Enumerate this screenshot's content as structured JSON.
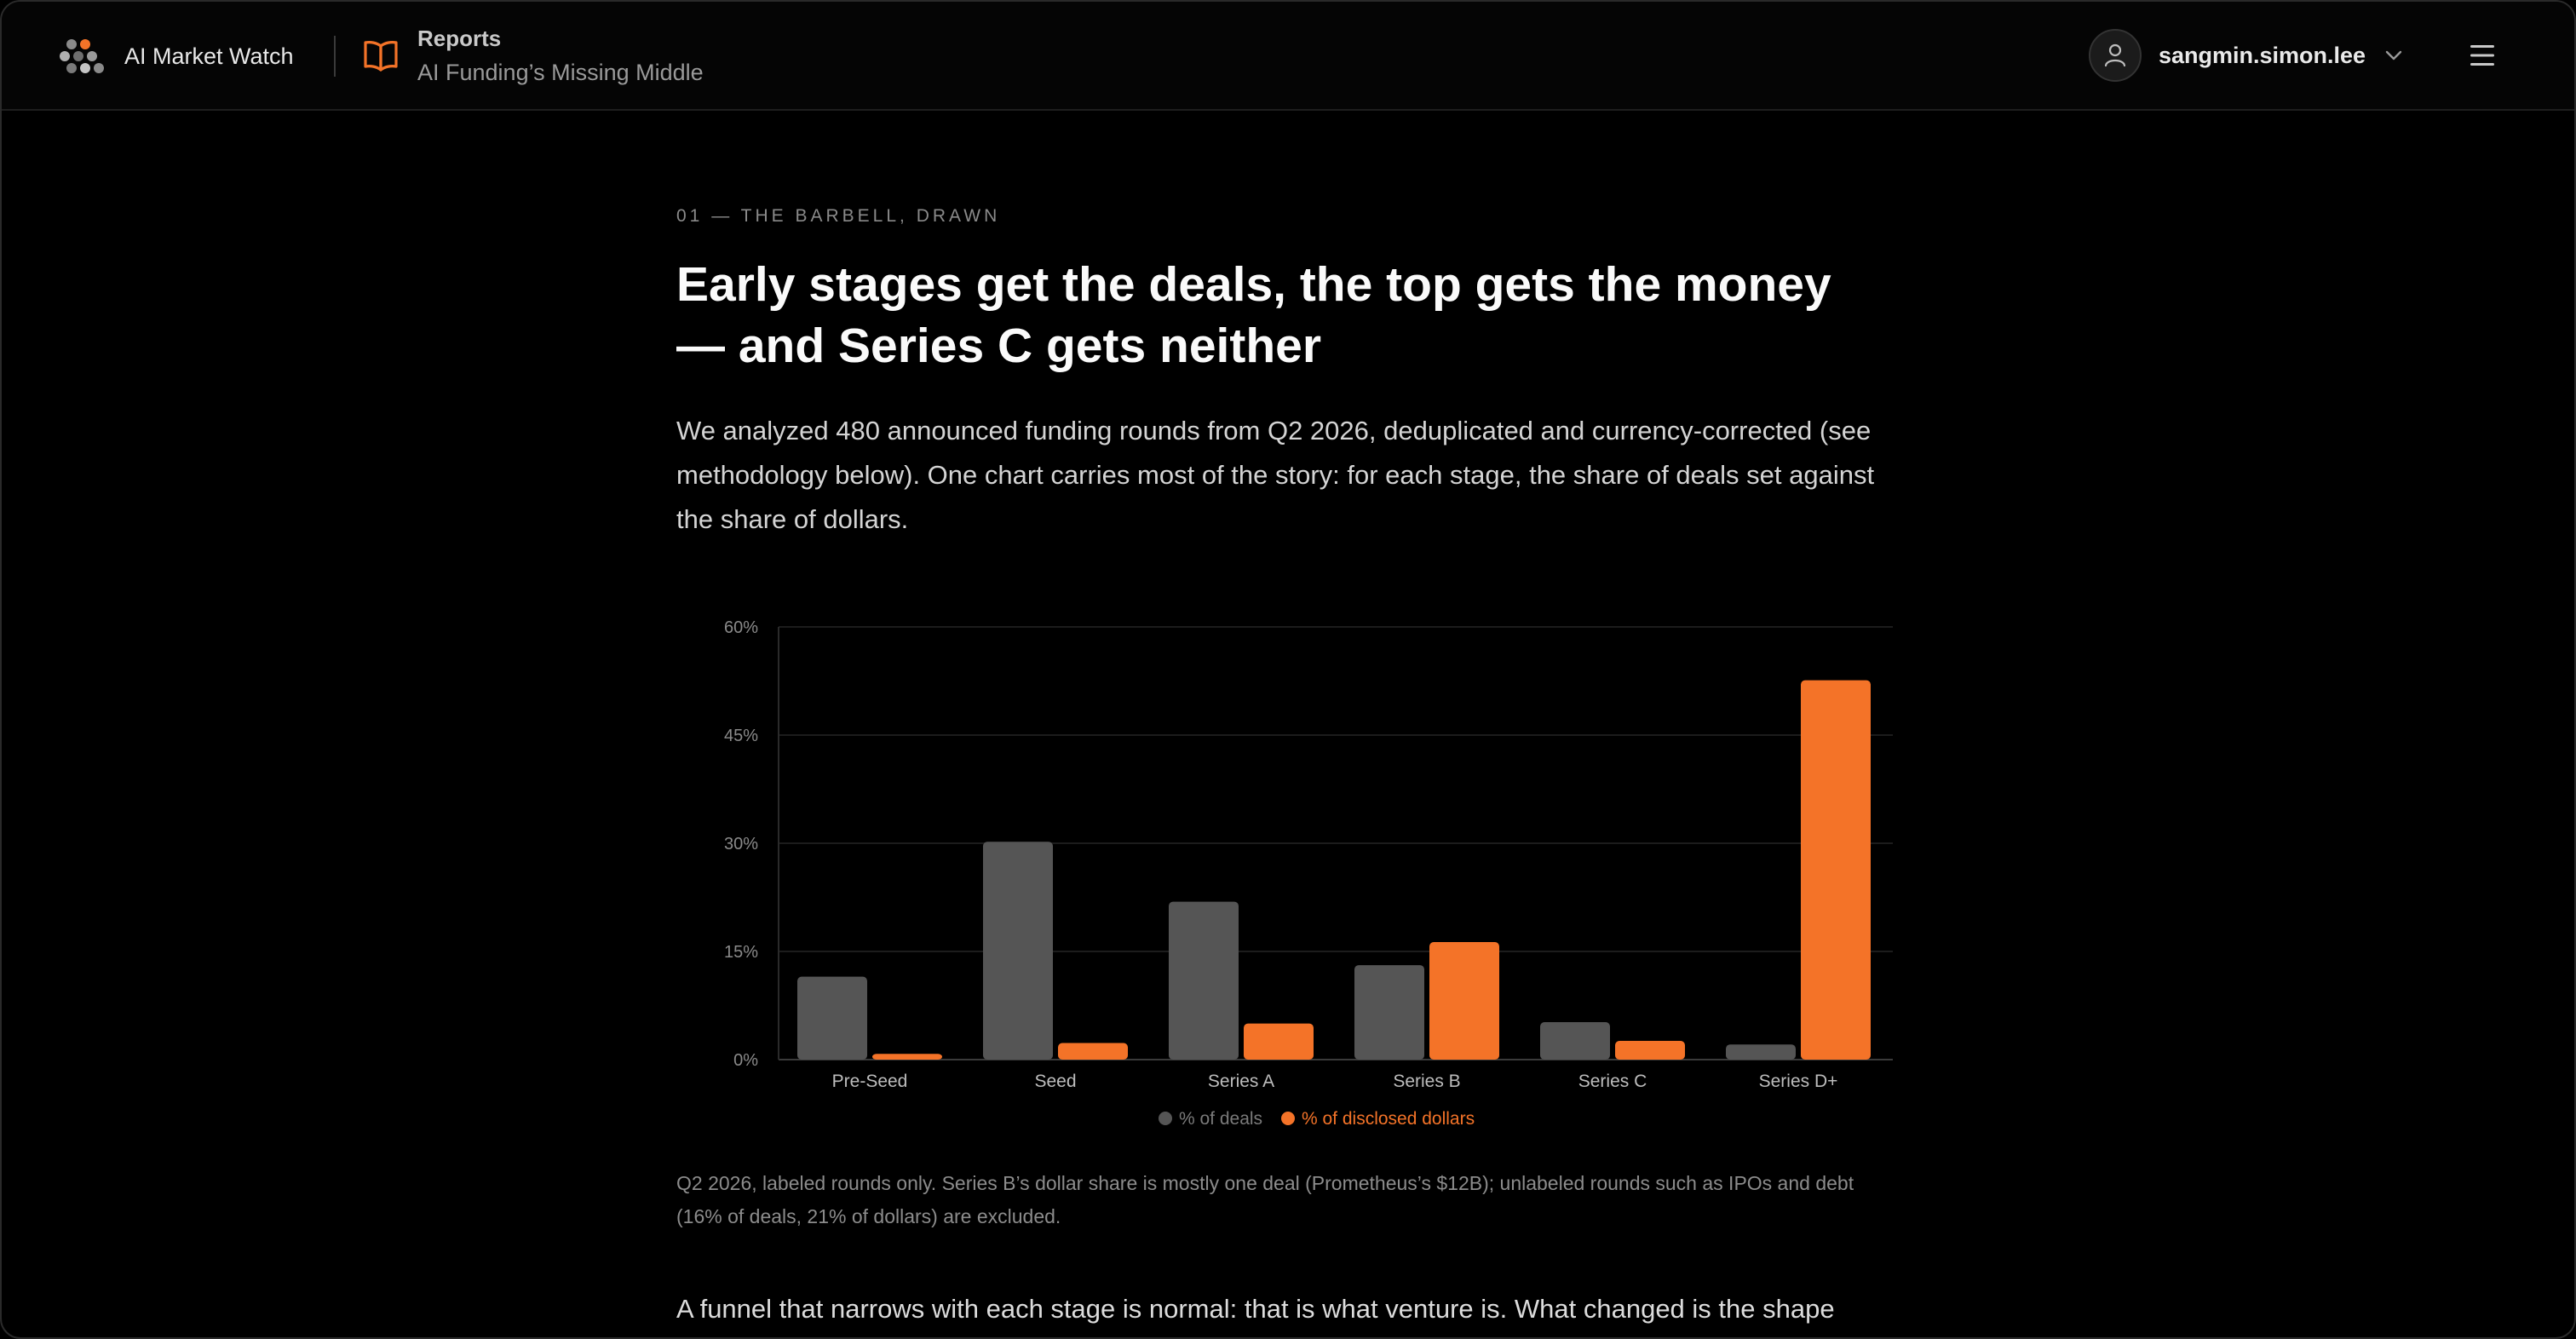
{
  "header": {
    "brand": "AI Market Watch",
    "section": "Reports",
    "page_title": "AI Funding’s Missing Middle",
    "username": "sangmin.simon.lee",
    "icons": {
      "logo": "hex-cluster-logo",
      "reports": "open-book-icon",
      "user": "user-icon",
      "dropdown": "chevron-down-icon",
      "menu": "hamburger-menu-icon"
    },
    "colors": {
      "accent": "#f47328"
    }
  },
  "article": {
    "eyebrow": "01 — THE BARBELL, DRAWN",
    "headline": "Early stages get the deals, the top gets the money — and Series C gets neither",
    "lede": "We analyzed 480 announced funding rounds from Q2 2026, deduplicated and currency-corrected (see methodology below). One chart carries most of the story: for each stage, the share of deals set against the share of dollars.",
    "caption": "Q2 2026, labeled rounds only. Series B’s dollar share is mostly one deal (Prometheus’s $12B); unlabeled rounds such as IPOs and debt (16% of deals, 21% of dollars) are excluded.",
    "body_partial": "A funnel that narrows with each stage is normal: that is what venture is. What changed is the shape"
  },
  "chart_data": {
    "type": "bar",
    "categories": [
      "Pre-Seed",
      "Seed",
      "Series A",
      "Series B",
      "Series C",
      "Series D+"
    ],
    "series": [
      {
        "name": "% of deals",
        "color": "#555555",
        "values": [
          11.5,
          30.2,
          21.9,
          13.1,
          5.2,
          2.1
        ]
      },
      {
        "name": "% of disclosed dollars",
        "color": "#f47328",
        "values": [
          0.8,
          2.3,
          5.0,
          16.3,
          2.6,
          52.6
        ]
      }
    ],
    "yticks": [
      "0%",
      "15%",
      "30%",
      "45%",
      "60%"
    ],
    "ylim": [
      0,
      60
    ],
    "grid": true,
    "legend": "bottom-center",
    "title": "",
    "xlabel": "",
    "ylabel": ""
  }
}
